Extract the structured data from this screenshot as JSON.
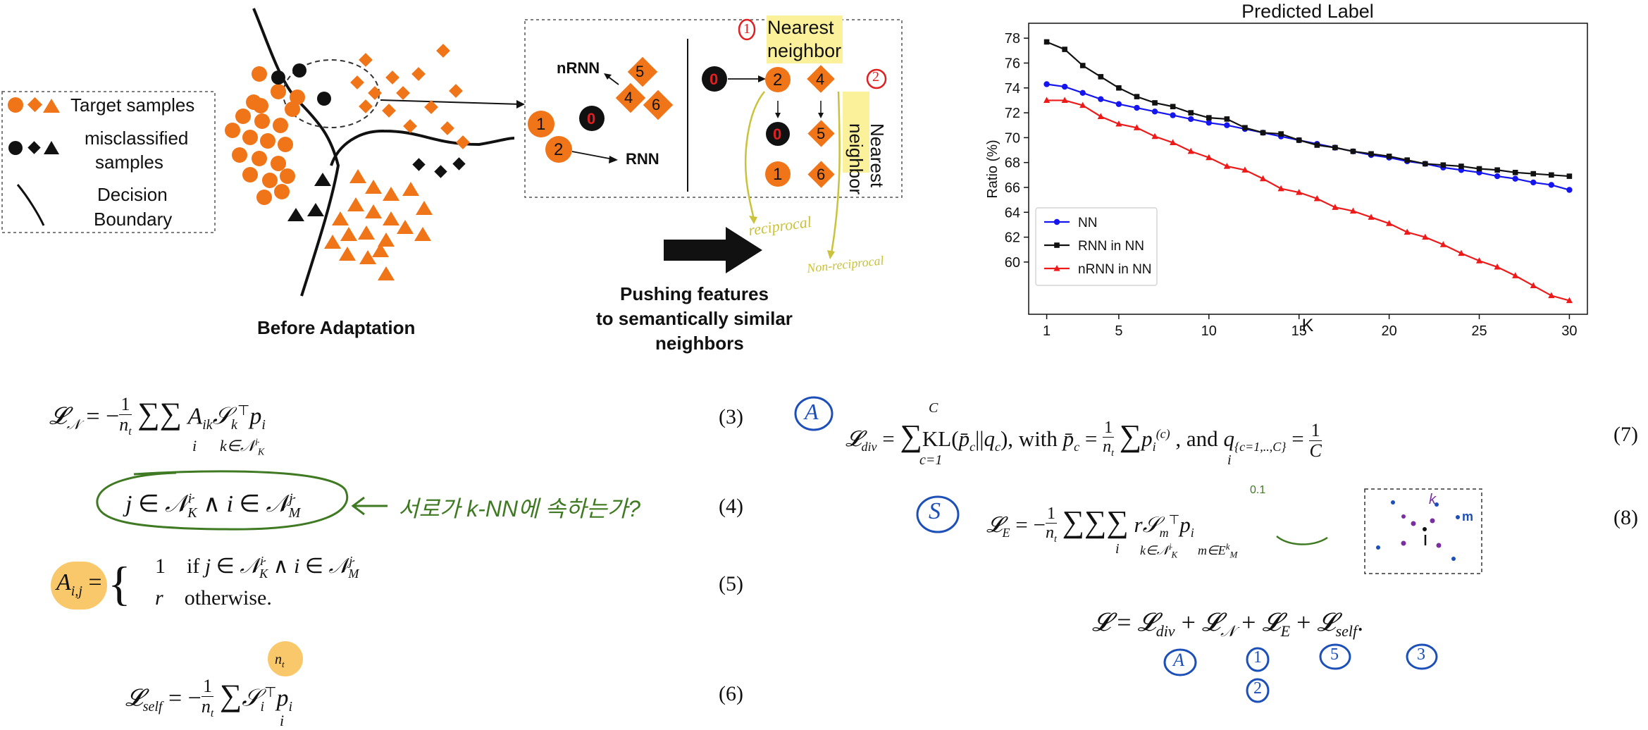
{
  "diagram": {
    "legend": {
      "target_label": "Target samples",
      "misclassified_label_1": "misclassified",
      "misclassified_label_2": "samples",
      "boundary_label_1": "Decision",
      "boundary_label_2": "Boundary"
    },
    "before_caption": "Before Adaptation",
    "pushing_caption_1": "Pushing features",
    "pushing_caption_2": "to semantically similar",
    "pushing_caption_3": "neighbors",
    "inset": {
      "nrnn_label": "nRNN",
      "rnn_label": "RNN",
      "node_5": "5",
      "node_4": "4",
      "node_6": "6",
      "node_1": "1",
      "node_0": "0",
      "node_2": "2",
      "right_0": "0",
      "right_2": "2",
      "right_4": "4",
      "right_0b": "0",
      "right_5": "5",
      "right_1": "1",
      "right_6": "6",
      "nearest_1a": "Nearest",
      "nearest_1b": "neighbor",
      "nearest_2a": "Nearest",
      "nearest_2b": "neighbor"
    },
    "handwriting": {
      "circle_1": "1",
      "circle_2": "2",
      "reciprocal": "reciprocal",
      "non_reciprocal": "Non-reciprocal"
    },
    "colors": {
      "orange": "#f07418",
      "black": "#111111",
      "highlight": "#fbf19b",
      "red_annot": "#e02020"
    }
  },
  "chart_data": {
    "type": "line",
    "title": "Predicted Label",
    "xlabel": "K",
    "ylabel": "Ratio (%)",
    "xlim": [
      0,
      31
    ],
    "ylim": [
      55.8,
      79.2
    ],
    "xticks": [
      1,
      5,
      10,
      15,
      20,
      25,
      30
    ],
    "yticks": [
      60,
      62,
      64,
      66,
      68,
      70,
      72,
      74,
      76,
      78
    ],
    "legend_position": "lower-left",
    "x": [
      1,
      2,
      3,
      4,
      5,
      6,
      7,
      8,
      9,
      10,
      11,
      12,
      13,
      14,
      15,
      16,
      17,
      18,
      19,
      20,
      21,
      22,
      23,
      24,
      25,
      26,
      27,
      28,
      29,
      30
    ],
    "series": [
      {
        "name": "NN",
        "color": "#1515f0",
        "marker": "circle",
        "values": [
          74.3,
          74.1,
          73.6,
          73.1,
          72.7,
          72.4,
          72.1,
          71.8,
          71.5,
          71.2,
          71.0,
          70.7,
          70.4,
          70.1,
          69.8,
          69.5,
          69.2,
          68.9,
          68.6,
          68.4,
          68.1,
          67.9,
          67.6,
          67.4,
          67.2,
          66.9,
          66.7,
          66.4,
          66.2,
          65.8
        ]
      },
      {
        "name": "RNN in NN",
        "color": "#111111",
        "marker": "square",
        "values": [
          77.7,
          77.1,
          75.8,
          74.9,
          74.0,
          73.3,
          72.8,
          72.5,
          72.0,
          71.6,
          71.5,
          70.8,
          70.4,
          70.3,
          69.8,
          69.4,
          69.2,
          68.9,
          68.7,
          68.5,
          68.2,
          67.9,
          67.8,
          67.7,
          67.5,
          67.4,
          67.2,
          67.1,
          67.0,
          66.9
        ]
      },
      {
        "name": "nRNN in NN",
        "color": "#ee1a1a",
        "marker": "triangle",
        "values": [
          73.0,
          73.0,
          72.6,
          71.7,
          71.1,
          70.8,
          70.1,
          69.6,
          68.9,
          68.4,
          67.7,
          67.4,
          66.7,
          65.9,
          65.6,
          65.1,
          64.4,
          64.1,
          63.6,
          63.1,
          62.4,
          62.0,
          61.4,
          60.7,
          60.1,
          59.6,
          58.9,
          58.1,
          57.3,
          56.9
        ]
      }
    ]
  },
  "equations": {
    "eq3_num": "(3)",
    "eq4_num": "(4)",
    "eq5_num": "(5)",
    "eq6_num": "(6)",
    "eq7_num": "(7)",
    "eq8_num": "(8)",
    "eq4_annotation": "서로가 k-NN에 속하는가?",
    "eq8_annot_r": "0.1",
    "annot_A": "A",
    "annot_S": "S",
    "total_annot_A": "A",
    "total_annot_1": "1",
    "total_annot_2": "2",
    "total_annot_5": "5",
    "total_annot_3": "3",
    "sketch_labels": {
      "k": "k",
      "m": "m",
      "i": "i"
    }
  }
}
